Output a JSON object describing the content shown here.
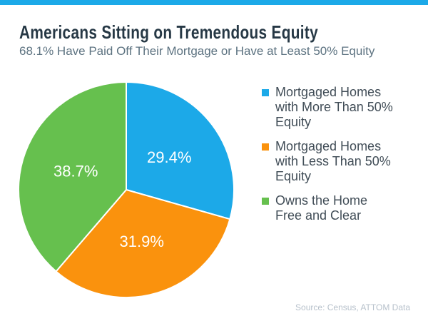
{
  "accent_bar_color": "#1CA9E8",
  "header": {
    "title": "Americans Sitting on Tremendous Equity",
    "subtitle": "68.1% Have Paid Off Their Mortgage or Have at Least 50% Equity"
  },
  "chart_data": {
    "type": "pie",
    "title": "Americans Sitting on Tremendous Equity",
    "subtitle": "68.1% Have Paid Off Their Mortgage or Have at Least 50% Equity",
    "start_angle_deg": 0,
    "direction": "clockwise",
    "legend_position": "right",
    "data_label_color": "#FFFFFF",
    "slices": [
      {
        "id": "more-than-50",
        "label": "Mortgaged Homes with More Than 50% Equity",
        "legend_label": "Mortgaged Homes\nwith More Than 50%\nEquity",
        "value": 29.4,
        "display": "29.4%",
        "color": "#1CA9E8"
      },
      {
        "id": "less-than-50",
        "label": "Mortgaged Homes with Less Than 50% Equity",
        "legend_label": "Mortgaged Homes\nwith Less Than 50%\nEquity",
        "value": 31.9,
        "display": "31.9%",
        "color": "#FA920D"
      },
      {
        "id": "free-and-clear",
        "label": "Owns the Home Free and Clear",
        "legend_label": "Owns the Home\nFree and Clear",
        "value": 38.7,
        "display": "38.7%",
        "color": "#66C04E"
      }
    ]
  },
  "footer": {
    "source": "Source: Census, ATTOM Data"
  }
}
